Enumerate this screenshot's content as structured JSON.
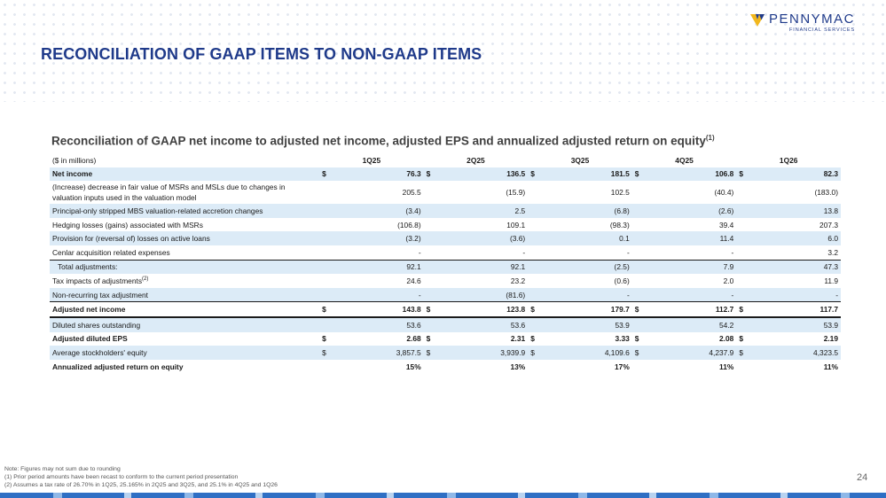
{
  "brand": {
    "name": "PENNYMAC",
    "tagline": "FINANCIAL SERVICES"
  },
  "page_title": "RECONCILIATION OF GAAP ITEMS TO NON-GAAP ITEMS",
  "table": {
    "title": "Reconciliation of GAAP net income to adjusted net income, adjusted EPS and annualized adjusted return on equity",
    "title_sup": "(1)",
    "unit_label": "($ in millions)",
    "periods": [
      "1Q25",
      "2Q25",
      "3Q25",
      "4Q25",
      "1Q26"
    ],
    "rows": [
      {
        "label": "Net income",
        "dollar": "$",
        "values": [
          "76.3",
          "136.5",
          "181.5",
          "106.8",
          "82.3"
        ]
      },
      {
        "label": "(Increase) decrease in fair value of MSRs and MSLs due to changes in valuation inputs used in the valuation model",
        "values": [
          "205.5",
          "(15.9)",
          "102.5",
          "(40.4)",
          "(183.0)"
        ]
      },
      {
        "label": "Principal-only stripped MBS valuation-related accretion changes",
        "values": [
          "(3.4)",
          "2.5",
          "(6.8)",
          "(2.6)",
          "13.8"
        ]
      },
      {
        "label": "Hedging losses (gains) associated with MSRs",
        "values": [
          "(106.8)",
          "109.1",
          "(98.3)",
          "39.4",
          "207.3"
        ]
      },
      {
        "label": "Provision for (reversal of) losses on active loans",
        "values": [
          "(3.2)",
          "(3.6)",
          "0.1",
          "11.4",
          "6.0"
        ]
      },
      {
        "label": "Cenlar acquisition related expenses",
        "values": [
          "-",
          "-",
          "-",
          "-",
          "3.2"
        ]
      },
      {
        "label": "Total adjustments:",
        "values": [
          "92.1",
          "92.1",
          "(2.5)",
          "7.9",
          "47.3"
        ]
      },
      {
        "label": "Tax impacts of adjustments",
        "label_sup": "(2)",
        "values": [
          "24.6",
          "23.2",
          "(0.6)",
          "2.0",
          "11.9"
        ]
      },
      {
        "label": "Non-recurring tax adjustment",
        "values": [
          "-",
          "(81.6)",
          "-",
          "-",
          "-"
        ]
      },
      {
        "label": "Adjusted net income",
        "dollar": "$",
        "values": [
          "143.8",
          "123.8",
          "179.7",
          "112.7",
          "117.7"
        ]
      },
      {
        "label": "Diluted shares outstanding",
        "values": [
          "53.6",
          "53.6",
          "53.9",
          "54.2",
          "53.9"
        ]
      },
      {
        "label": "Adjusted diluted EPS",
        "dollar": "$",
        "values": [
          "2.68",
          "2.31",
          "3.33",
          "2.08",
          "2.19"
        ]
      },
      {
        "label": "Average stockholders' equity",
        "dollar": "$",
        "values": [
          "3,857.5",
          "3,939.9",
          "4,109.6",
          "4,237.9",
          "4,323.5"
        ]
      },
      {
        "label": "Annualized adjusted return on equity",
        "values": [
          "15%",
          "13%",
          "17%",
          "11%",
          "11%"
        ]
      }
    ]
  },
  "footnotes": {
    "note": "Note: Figures may not sum due to rounding",
    "fn1": "(1) Prior period amounts have been recast to conform to the current period presentation",
    "fn2": "(2) Assumes a tax rate of 26.70% in 1Q25, 25.165% in 2Q25 and 3Q25, and 25.1% in 4Q25 and 1Q26"
  },
  "page_number": "24",
  "colors": {
    "brand_blue": "#1f3a8a",
    "logo_yellow": "#f2b71c",
    "row_shade": "#dcebf7",
    "bar_blue": "#2f6fc4"
  },
  "icons": {
    "logo_mark": "pennymac-chevron-icon"
  }
}
